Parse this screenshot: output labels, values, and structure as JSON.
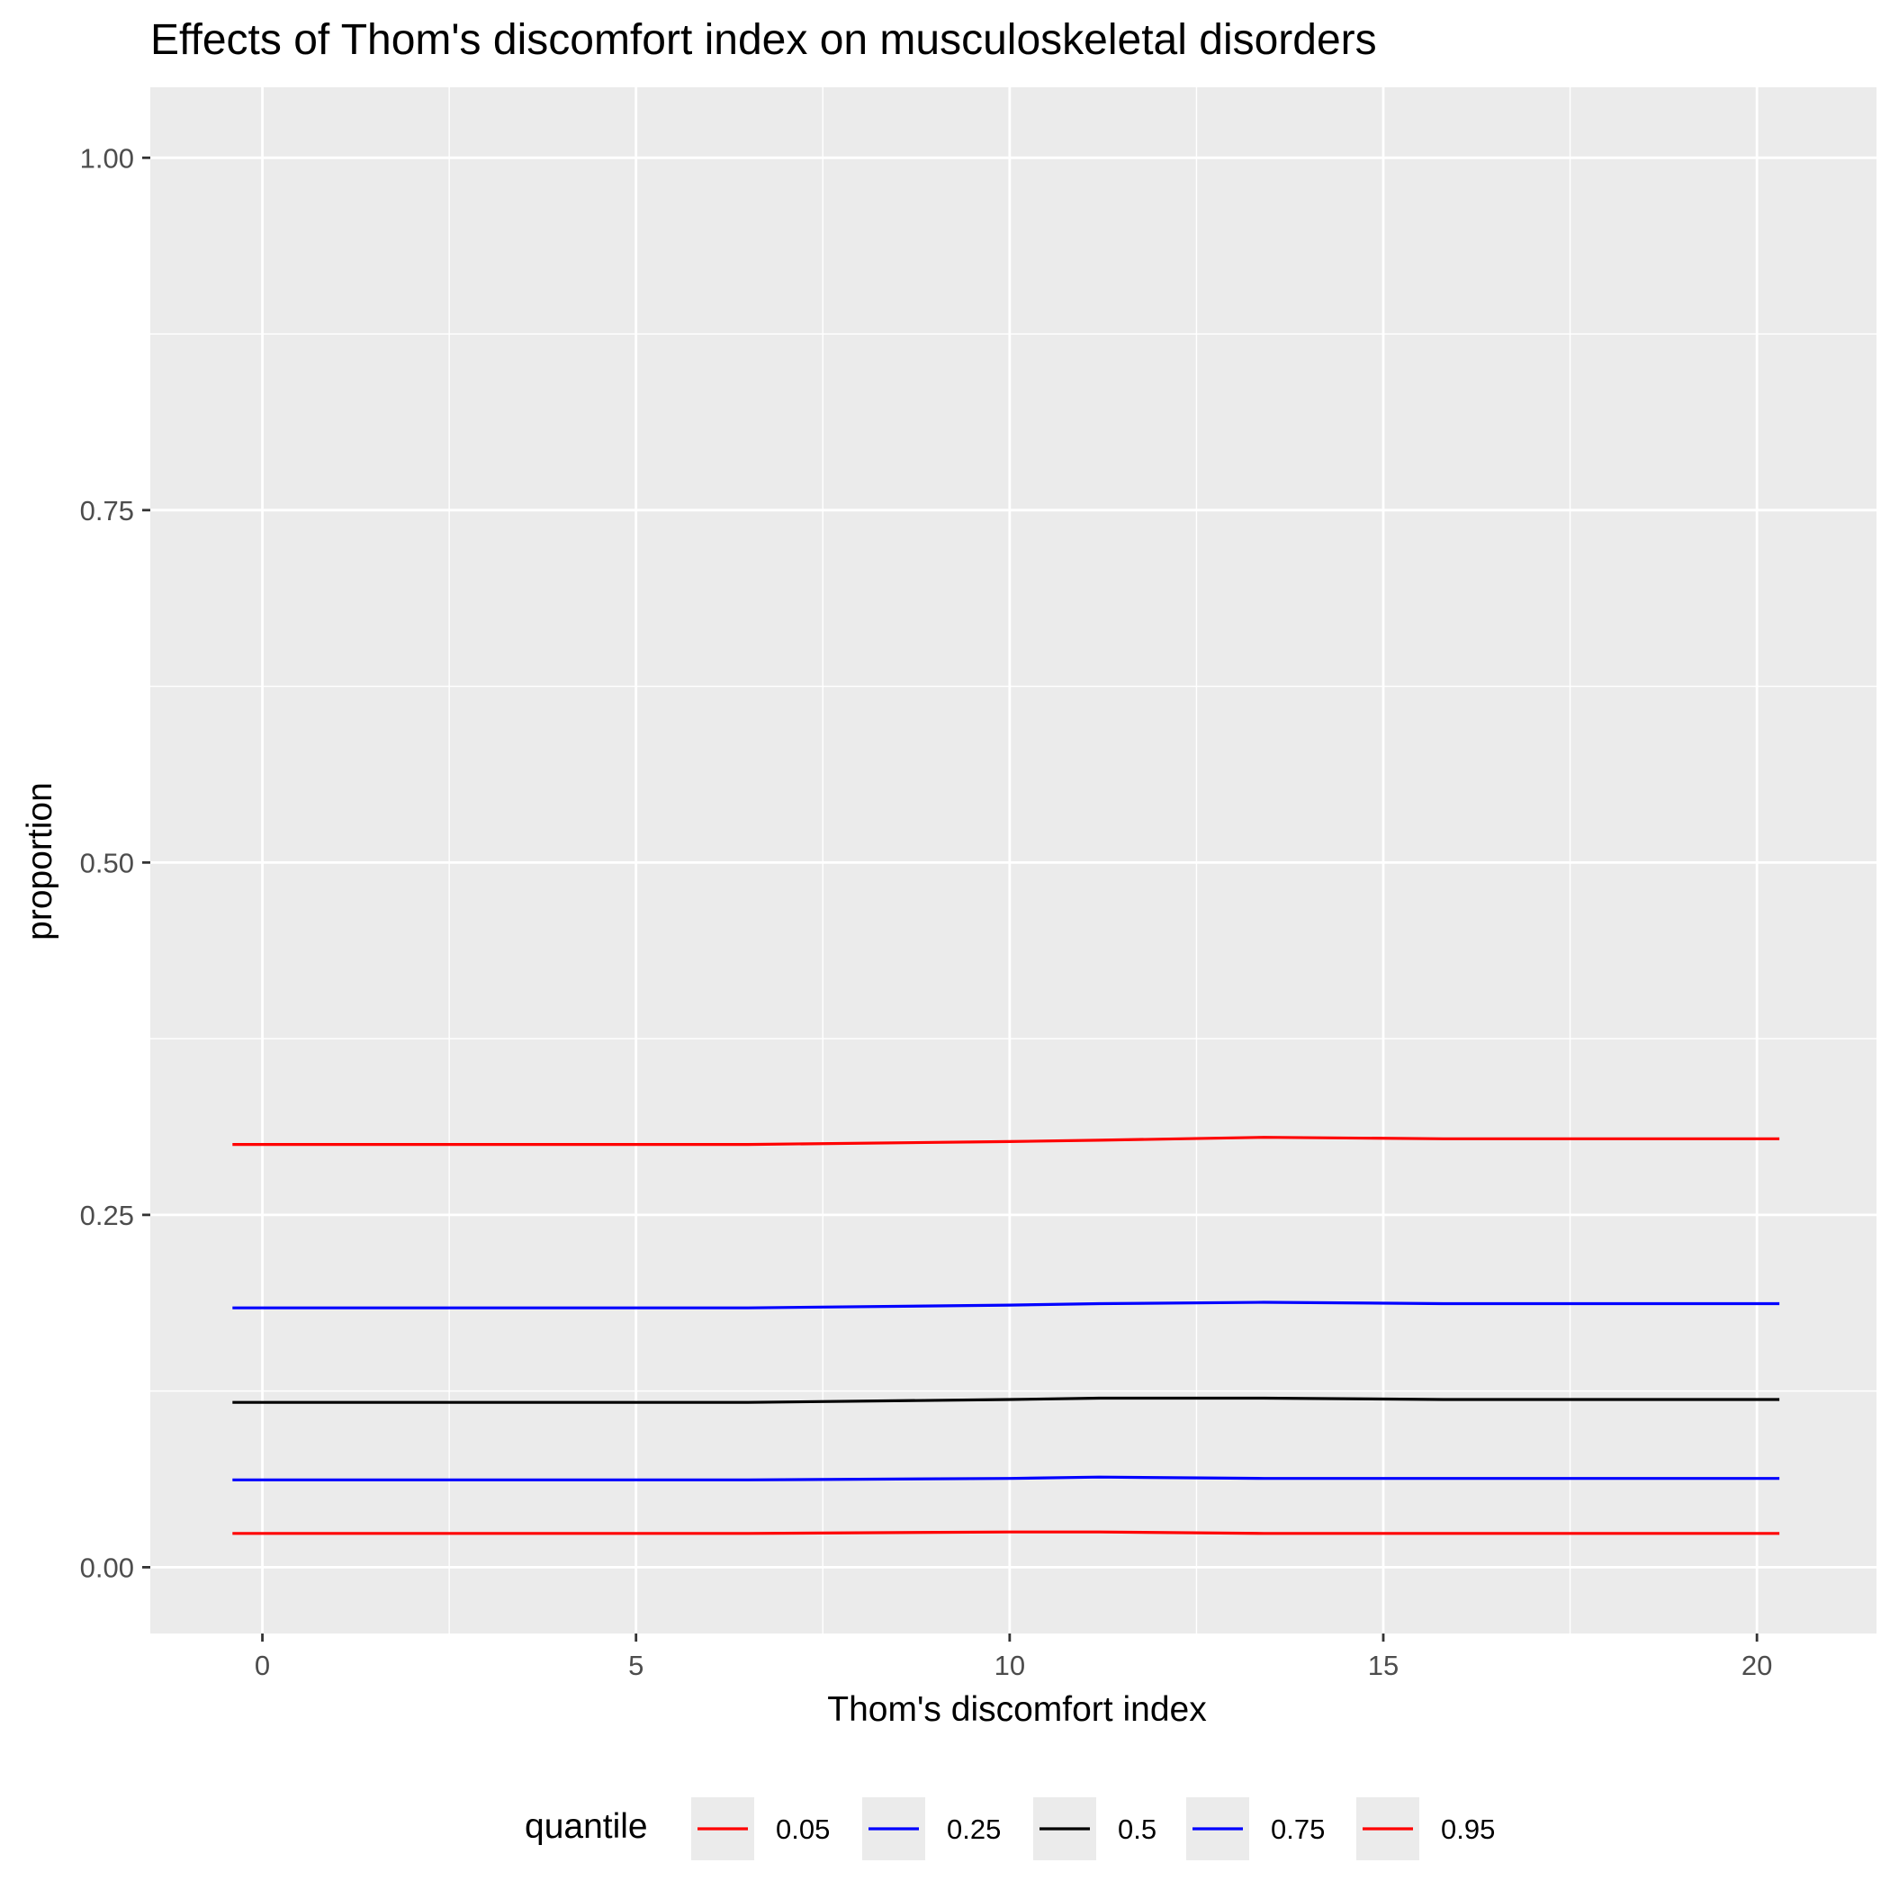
{
  "chart_data": {
    "type": "line",
    "title": "Effects of Thom's discomfort index on musculoskeletal disorders",
    "xlabel": "Thom's discomfort index",
    "ylabel": "proportion",
    "xlim": [
      -1.5,
      21.6
    ],
    "ylim": [
      -0.047,
      1.05
    ],
    "x_ticks": [
      0,
      5,
      10,
      15,
      20
    ],
    "x_tick_labels": [
      "0",
      "5",
      "10",
      "15",
      "20"
    ],
    "y_ticks": [
      0,
      0.25,
      0.5,
      0.75,
      1
    ],
    "y_tick_labels": [
      "0.00",
      "0.25",
      "0.50",
      "0.75",
      "1.00"
    ],
    "grid": true,
    "legend": {
      "title": "quantile",
      "position": "bottom"
    },
    "colors": {
      "panel": "#ebebeb",
      "grid": "#ffffff"
    },
    "series": [
      {
        "name": "0.05",
        "color": "#ff0000",
        "x": [
          -0.4,
          2.5,
          6.5,
          10,
          11.2,
          13.4,
          15.8,
          20.3
        ],
        "y": [
          0.024,
          0.024,
          0.024,
          0.025,
          0.025,
          0.024,
          0.024,
          0.024
        ]
      },
      {
        "name": "0.25",
        "color": "#0000ff",
        "x": [
          -0.4,
          2.5,
          6.5,
          10,
          11.2,
          13.4,
          15.8,
          20.3
        ],
        "y": [
          0.062,
          0.062,
          0.062,
          0.063,
          0.064,
          0.063,
          0.063,
          0.063
        ]
      },
      {
        "name": "0.5",
        "color": "#000000",
        "x": [
          -0.4,
          2.5,
          6.5,
          10,
          11.2,
          13.4,
          15.8,
          20.3
        ],
        "y": [
          0.117,
          0.117,
          0.117,
          0.119,
          0.12,
          0.12,
          0.119,
          0.119
        ]
      },
      {
        "name": "0.75",
        "color": "#0000ff",
        "x": [
          -0.4,
          2.5,
          6.5,
          10,
          11.2,
          13.4,
          15.8,
          20.3
        ],
        "y": [
          0.184,
          0.184,
          0.184,
          0.186,
          0.187,
          0.188,
          0.187,
          0.187
        ]
      },
      {
        "name": "0.95",
        "color": "#ff0000",
        "x": [
          -0.4,
          2.5,
          6.5,
          10,
          11.2,
          13.4,
          15.8,
          20.3
        ],
        "y": [
          0.3,
          0.3,
          0.3,
          0.302,
          0.303,
          0.305,
          0.304,
          0.304
        ]
      }
    ]
  }
}
